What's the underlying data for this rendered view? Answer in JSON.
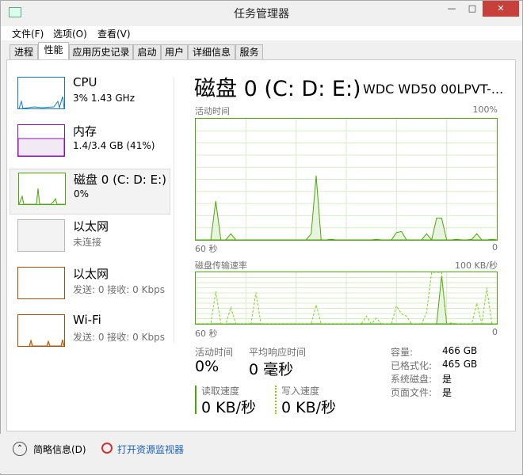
{
  "window": {
    "title": "任务管理器",
    "controls": [
      "minimize",
      "maximize",
      "close"
    ]
  },
  "menu": [
    "文件(F)",
    "选项(O)",
    "查看(V)"
  ],
  "tabs": [
    {
      "label": "进程"
    },
    {
      "label": "性能",
      "active": true
    },
    {
      "label": "应用历史记录"
    },
    {
      "label": "启动"
    },
    {
      "label": "用户"
    },
    {
      "label": "详细信息"
    },
    {
      "label": "服务"
    }
  ],
  "sidebar": {
    "items": [
      {
        "name": "CPU",
        "sub": "3% 1.43 GHz",
        "color": "#1779ba"
      },
      {
        "name": "内存",
        "sub": "1.4/3.4 GB (41%)",
        "color": "#8b12ae"
      },
      {
        "name": "磁盘 0 (C: D: E:)",
        "sub": "0%",
        "color": "#4da60c",
        "selected": true
      },
      {
        "name": "以太网",
        "sub": "未连接",
        "color": "#b8b8b8"
      },
      {
        "name": "以太网",
        "sub": "发送: 0 接收: 0 Kbps",
        "color": "#a74f01"
      },
      {
        "name": "Wi-Fi",
        "sub": "发送: 0 接收: 0 Kbps",
        "color": "#a74f01"
      }
    ]
  },
  "main": {
    "title": "磁盘 0 (C: D: E:)",
    "model": "WDC WD50 00LPVT-...",
    "active_label": "活动时间",
    "active_max": "100%",
    "time_left": "60 秒",
    "time_right": "0",
    "transfer_label": "磁盘传输速率",
    "transfer_max": "100 KB/秒",
    "stats": {
      "active_time_label": "活动时间",
      "active_time": "0%",
      "response_label": "平均响应时间",
      "response": "0 毫秒",
      "read_label": "读取速度",
      "read": "0 KB/秒",
      "write_label": "写入速度",
      "write": "0 KB/秒"
    },
    "props": [
      {
        "k": "容量:",
        "v": "466 GB"
      },
      {
        "k": "已格式化:",
        "v": "465 GB"
      },
      {
        "k": "系统磁盘:",
        "v": "是"
      },
      {
        "k": "页面文件:",
        "v": "是"
      }
    ]
  },
  "footer": {
    "summary": "简略信息(D)",
    "monitor": "打开资源监视器"
  },
  "chart_data": [
    {
      "type": "area",
      "title": "活动时间",
      "ylim": [
        0,
        100
      ],
      "x_range": [
        "60 秒",
        "0"
      ],
      "color": "#4da60c",
      "values": [
        0,
        0,
        0,
        0,
        32,
        0,
        0,
        5,
        0,
        0,
        0,
        0,
        0,
        0,
        0,
        0,
        0,
        0,
        0,
        0,
        0,
        0,
        0,
        5,
        53,
        0,
        0,
        0.5,
        0,
        0,
        0,
        0,
        0,
        0,
        0,
        0,
        0.5,
        0,
        0,
        0,
        6,
        7,
        0,
        0,
        0,
        0,
        5,
        0,
        18,
        18,
        0,
        0,
        0.5,
        0,
        0,
        0.5,
        5,
        0,
        0,
        0.5,
        0
      ]
    },
    {
      "type": "line",
      "title": "磁盘传输速率",
      "ylim": [
        0,
        100
      ],
      "unit": "KB/秒",
      "x_range": [
        "60 秒",
        "0"
      ],
      "series": [
        {
          "style": "solid",
          "color": "#4da60c",
          "values": [
            0,
            0,
            0,
            0,
            0,
            0,
            0,
            0,
            0,
            0,
            0,
            0,
            0,
            0,
            0,
            0,
            0,
            0,
            0,
            0,
            0,
            0,
            0,
            0,
            0,
            0,
            0,
            0,
            0,
            0,
            0,
            0,
            0,
            0,
            0,
            0,
            0,
            0,
            0,
            0,
            0,
            0,
            0,
            0,
            0,
            0,
            0,
            0,
            0,
            93,
            0,
            0,
            0,
            0,
            0,
            0,
            0,
            0,
            0,
            0,
            0
          ]
        },
        {
          "style": "dashed",
          "color": "#7fd321",
          "values": [
            0,
            0,
            0,
            0,
            63,
            0,
            0,
            32,
            0,
            0,
            0,
            0,
            61,
            0,
            0,
            0,
            0,
            0,
            0,
            0,
            0,
            0,
            0,
            0,
            37,
            0,
            0,
            0,
            0,
            0,
            0,
            0,
            0,
            0,
            15,
            0,
            11,
            0,
            0,
            0,
            35,
            19,
            15,
            0,
            0,
            0,
            22,
            100,
            100,
            100,
            0,
            2,
            0,
            0,
            0,
            0,
            40,
            0,
            70,
            0,
            0
          ]
        }
      ]
    }
  ]
}
